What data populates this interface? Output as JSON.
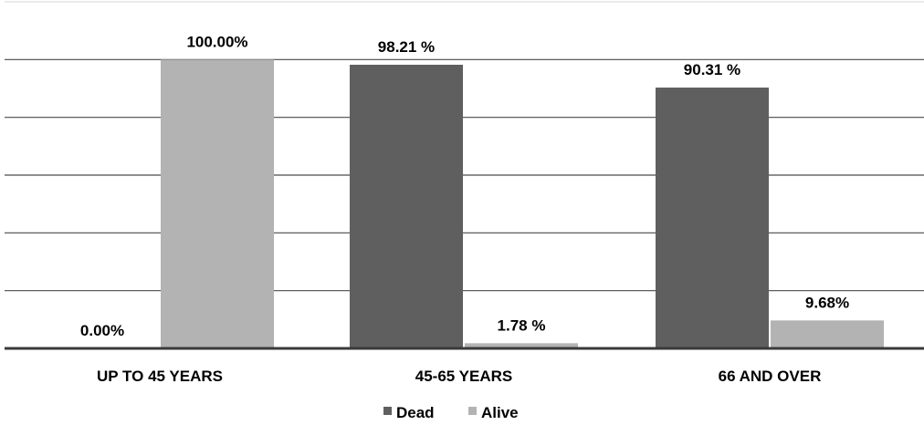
{
  "chart_data": {
    "type": "bar",
    "categories": [
      "UP TO 45 YEARS",
      "45-65 YEARS",
      "66 AND OVER"
    ],
    "series": [
      {
        "name": "Dead",
        "values": [
          0.0,
          98.21,
          90.31
        ],
        "labels": [
          "0.00%",
          "98.21 %",
          "90.31 %"
        ],
        "color": "#5f5f5f"
      },
      {
        "name": "Alive",
        "values": [
          100.0,
          1.78,
          9.68
        ],
        "labels": [
          "100.00%",
          "1.78 %",
          "9.68%"
        ],
        "color": "#b3b3b3"
      }
    ],
    "ylim": [
      0,
      120
    ],
    "gridlines": true,
    "gridline_step": 20,
    "legend_position": "bottom-center",
    "title": "",
    "xlabel": "",
    "ylabel": ""
  }
}
